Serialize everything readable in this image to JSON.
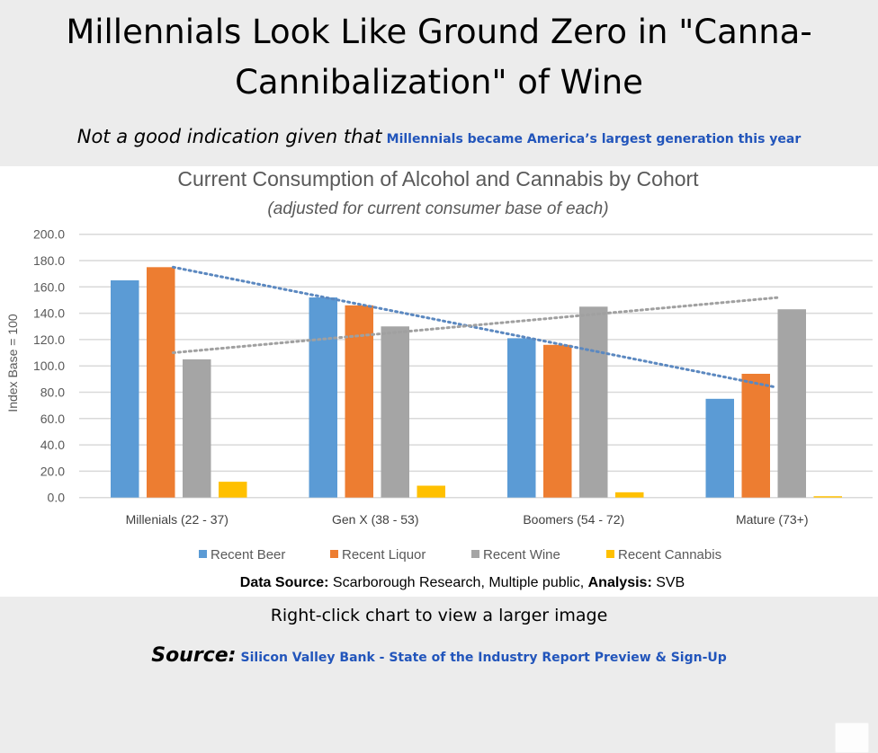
{
  "headline": {
    "line1": "Millennials Look Like Ground Zero in \"Canna-",
    "line2": "Cannibalization\" of Wine"
  },
  "subline": {
    "lead": "Not a good indication given that",
    "link": "Millennials became America’s largest generation this year"
  },
  "colors": {
    "beer": "#5b9bd5",
    "liquor": "#ed7d31",
    "wine": "#a5a5a5",
    "cannabis": "#ffc000",
    "link": "#2255bb"
  },
  "chart_data": {
    "type": "bar",
    "title": "Current Consumption of Alcohol and Cannabis by Cohort",
    "subtitle": "(adjusted for current consumer base of each)",
    "xlabel": "",
    "ylabel": "Index Base = 100",
    "ylim": [
      0,
      200
    ],
    "yticks": [
      "0.0",
      "20.0",
      "40.0",
      "60.0",
      "80.0",
      "100.0",
      "120.0",
      "140.0",
      "160.0",
      "180.0",
      "200.0"
    ],
    "grid": true,
    "legend_position": "bottom",
    "categories": [
      "Millenials (22 - 37)",
      "Gen X (38 - 53)",
      "Boomers (54 - 72)",
      "Mature (73+)"
    ],
    "series": [
      {
        "name": "Recent Beer",
        "key": "beer",
        "values": [
          165,
          152,
          121,
          75
        ]
      },
      {
        "name": "Recent Liquor",
        "key": "liquor",
        "values": [
          175,
          146,
          116,
          94
        ]
      },
      {
        "name": "Recent Wine",
        "key": "wine",
        "values": [
          105,
          130,
          145,
          143
        ]
      },
      {
        "name": "Recent Cannabis",
        "key": "cannabis",
        "values": [
          12,
          9,
          4,
          1
        ]
      }
    ],
    "trendlines": [
      {
        "series": "Recent Liquor",
        "style": "dotted",
        "color": "#5b88c0",
        "start": 175,
        "end": 84
      },
      {
        "series": "Recent Wine",
        "style": "dotted",
        "color": "#a0a0a0",
        "start": 110,
        "end": 152
      }
    ],
    "source_note": {
      "label1": "Data Source:",
      "text1": " Scarborough Research, Multiple public, ",
      "label2": "Analysis:",
      "text2": " SVB"
    }
  },
  "footer": {
    "hint": "Right-click chart to view a larger image",
    "source_label": "Source:",
    "source_link": "Silicon Valley Bank - State of the Industry Report Preview & Sign-Up"
  }
}
